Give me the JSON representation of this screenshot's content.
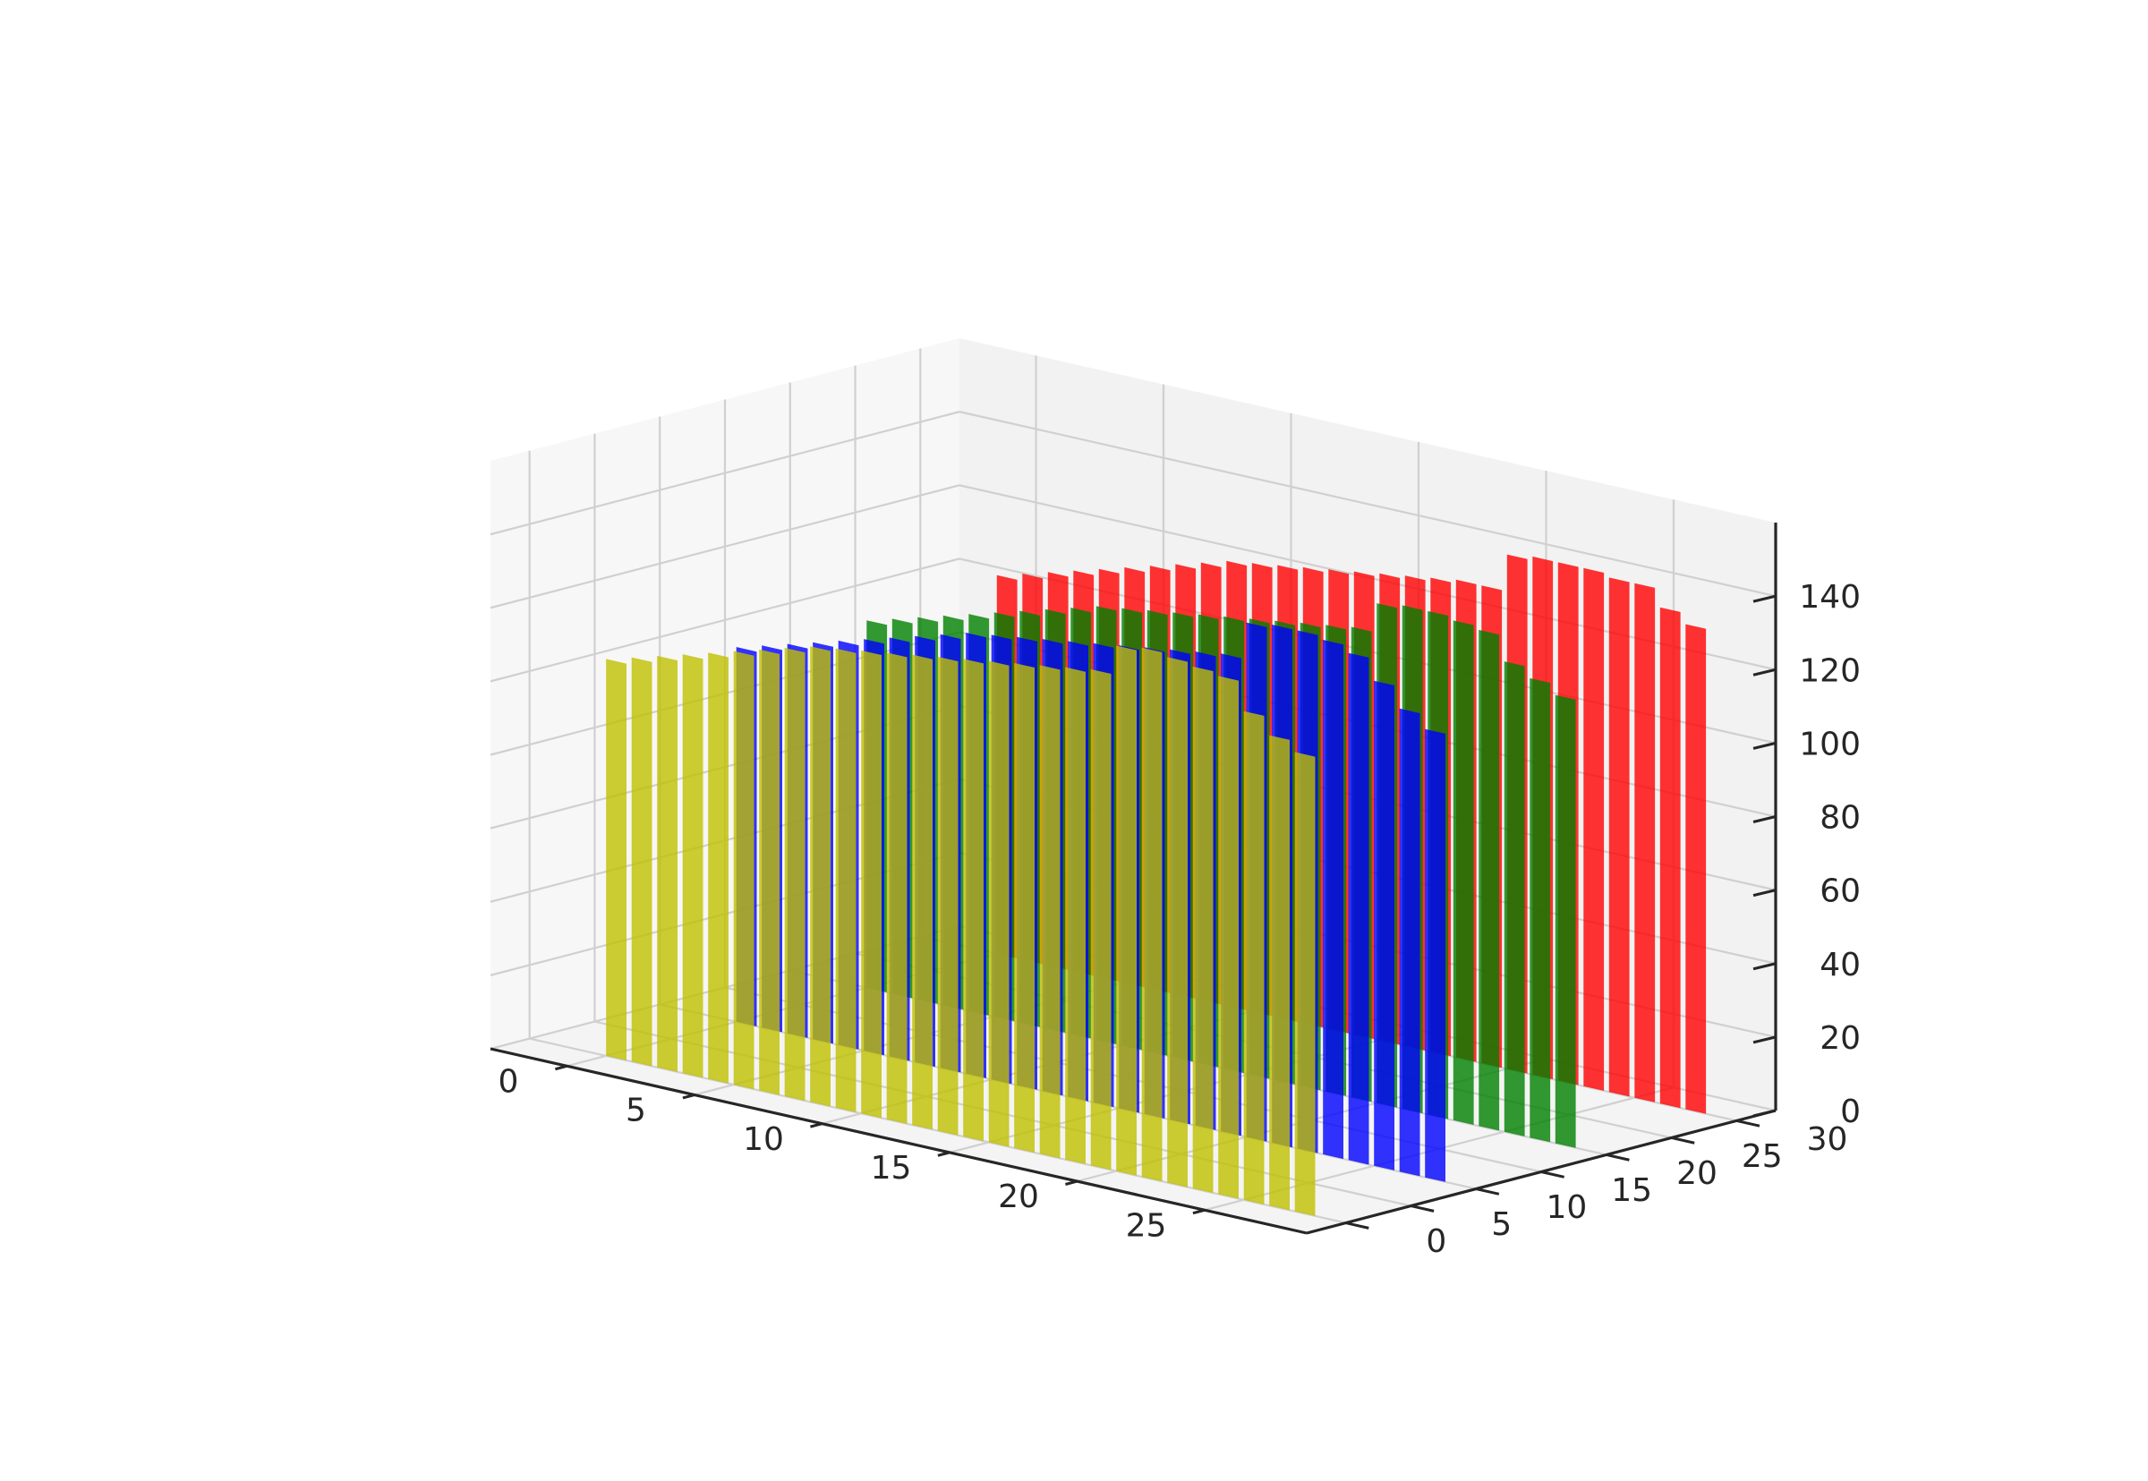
{
  "chart_data": {
    "type": "bar",
    "projection": "3d",
    "title": "",
    "xlabel": "",
    "ylabel": "",
    "zlabel": "",
    "xlim": [
      -3,
      29
    ],
    "ylim": [
      -3,
      33
    ],
    "zlim": [
      0,
      160
    ],
    "x_ticks": [
      0,
      5,
      10,
      15,
      20,
      25
    ],
    "y_ticks": [
      0,
      5,
      10,
      15,
      20,
      25,
      30
    ],
    "z_ticks": [
      0,
      20,
      40,
      60,
      80,
      100,
      120,
      140
    ],
    "grid": true,
    "series": [
      {
        "y": 30,
        "color": "#ff0000",
        "categories": [
          0,
          1,
          2,
          3,
          4,
          5,
          6,
          7,
          8,
          9,
          10,
          11,
          12,
          13,
          14,
          15,
          16,
          17,
          18,
          19,
          20,
          21,
          22,
          23,
          24,
          25,
          26,
          27
        ],
        "values": [
          103,
          105,
          107,
          109,
          111,
          113,
          115,
          117,
          119,
          121,
          122,
          123,
          124,
          125,
          126,
          127,
          128,
          129,
          130,
          130,
          140,
          141,
          141,
          141,
          140,
          140,
          135,
          132
        ]
      },
      {
        "y": 20,
        "color": "#008000",
        "categories": [
          0,
          1,
          2,
          3,
          4,
          5,
          6,
          7,
          8,
          9,
          10,
          11,
          12,
          13,
          14,
          15,
          16,
          17,
          18,
          19,
          20,
          21,
          22,
          23,
          24,
          25,
          26,
          27
        ],
        "values": [
          100,
          102,
          104,
          106,
          108,
          110,
          112,
          114,
          116,
          118,
          119,
          120,
          121,
          122,
          123,
          124,
          125,
          126,
          127,
          128,
          136,
          137,
          137,
          136,
          135,
          128,
          125,
          122
        ]
      },
      {
        "y": 10,
        "color": "#0000ff",
        "categories": [
          0,
          1,
          2,
          3,
          4,
          5,
          6,
          7,
          8,
          9,
          10,
          11,
          12,
          13,
          14,
          15,
          16,
          17,
          18,
          19,
          20,
          21,
          22,
          23,
          24,
          25,
          26,
          27
        ],
        "values": [
          102,
          104,
          106,
          108,
          110,
          112,
          114,
          116,
          118,
          120,
          121,
          122,
          123,
          124,
          125,
          126,
          127,
          128,
          129,
          130,
          140,
          141,
          141,
          140,
          138,
          132,
          126,
          122
        ]
      },
      {
        "y": 0,
        "color": "#bfbf00",
        "categories": [
          0,
          1,
          2,
          3,
          4,
          5,
          6,
          7,
          8,
          9,
          10,
          11,
          12,
          13,
          14,
          15,
          16,
          17,
          18,
          19,
          20,
          21,
          22,
          23,
          24,
          25,
          26,
          27
        ],
        "values": [
          108,
          110,
          112,
          114,
          116,
          118,
          120,
          122,
          124,
          125,
          126,
          127,
          128,
          129,
          130,
          131,
          132,
          133,
          134,
          135,
          143,
          144,
          143,
          142,
          141,
          133,
          128,
          125
        ]
      }
    ]
  }
}
